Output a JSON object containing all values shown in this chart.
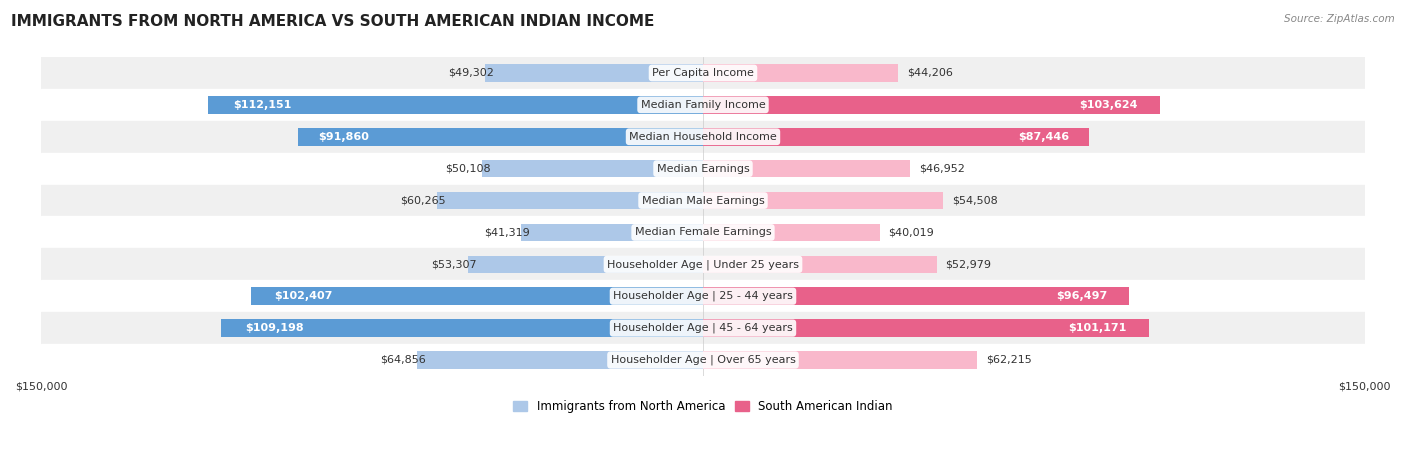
{
  "title": "IMMIGRANTS FROM NORTH AMERICA VS SOUTH AMERICAN INDIAN INCOME",
  "source": "Source: ZipAtlas.com",
  "categories": [
    "Per Capita Income",
    "Median Family Income",
    "Median Household Income",
    "Median Earnings",
    "Median Male Earnings",
    "Median Female Earnings",
    "Householder Age | Under 25 years",
    "Householder Age | 25 - 44 years",
    "Householder Age | 45 - 64 years",
    "Householder Age | Over 65 years"
  ],
  "left_values": [
    49302,
    112151,
    91860,
    50108,
    60265,
    41319,
    53307,
    102407,
    109198,
    64856
  ],
  "right_values": [
    44206,
    103624,
    87446,
    46952,
    54508,
    40019,
    52979,
    96497,
    101171,
    62215
  ],
  "left_labels": [
    "$49,302",
    "$112,151",
    "$91,860",
    "$50,108",
    "$60,265",
    "$41,319",
    "$53,307",
    "$102,407",
    "$109,198",
    "$64,856"
  ],
  "right_labels": [
    "$44,206",
    "$103,624",
    "$87,446",
    "$46,952",
    "$54,508",
    "$40,019",
    "$52,979",
    "$96,497",
    "$101,171",
    "$62,215"
  ],
  "max_value": 150000,
  "left_color_light": "#adc8e8",
  "left_color_dark": "#5b9bd5",
  "right_color_light": "#f9b8cb",
  "right_color_dark": "#e8618a",
  "inside_label_threshold": 80000,
  "legend_left": "Immigrants from North America",
  "legend_right": "South American Indian",
  "row_colors": [
    "#f0f0f0",
    "#ffffff",
    "#f0f0f0",
    "#ffffff",
    "#f0f0f0",
    "#ffffff",
    "#f0f0f0",
    "#ffffff",
    "#f0f0f0",
    "#ffffff"
  ],
  "title_fontsize": 11,
  "label_fontsize": 8,
  "category_fontsize": 8,
  "axis_label_fontsize": 8
}
